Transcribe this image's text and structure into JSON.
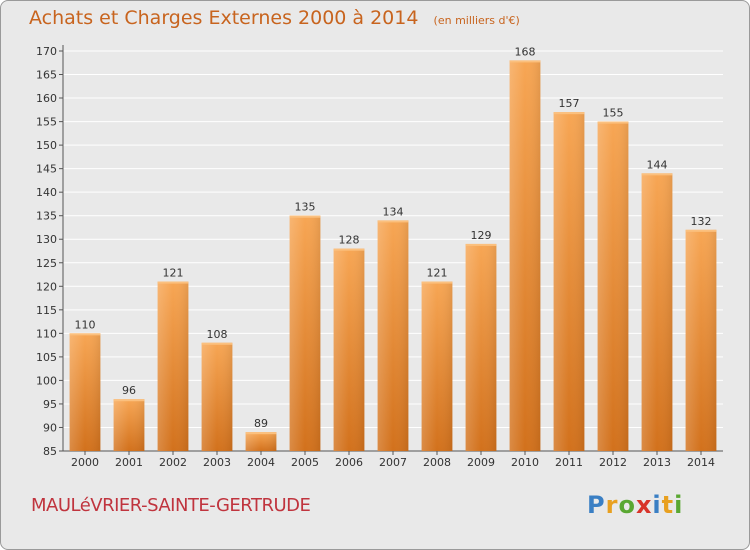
{
  "header": {
    "title": "Achats et Charges Externes 2000 à 2014",
    "unit": "(en milliers d'€)"
  },
  "footer": {
    "commune": "MAULéVRIER-SAINTE-GERTRUDE",
    "brand_letters": [
      "P",
      "r",
      "o",
      "x",
      "i",
      "t",
      "i"
    ],
    "brand_colors": [
      "#3a7fc4",
      "#e8a020",
      "#5aa832",
      "#d8342a",
      "#3a7fc4",
      "#e8a020",
      "#5aa832"
    ]
  },
  "colors": {
    "bar_top": "#f7a654",
    "bar_bottom": "#d2711c",
    "axis_text": "#333333",
    "grid": "#ffffff",
    "plot_bg": "#e9e9e9"
  },
  "chart_data": {
    "type": "bar",
    "title": "Achats et Charges Externes 2000 à 2014",
    "categories": [
      "2000",
      "2001",
      "2002",
      "2003",
      "2004",
      "2005",
      "2006",
      "2007",
      "2008",
      "2009",
      "2010",
      "2011",
      "2012",
      "2013",
      "2014"
    ],
    "values": [
      110,
      96,
      121,
      108,
      89,
      135,
      128,
      134,
      121,
      129,
      168,
      157,
      155,
      144,
      132
    ],
    "ylim": [
      85,
      170
    ],
    "yticks": [
      85,
      90,
      95,
      100,
      105,
      110,
      115,
      120,
      125,
      130,
      135,
      140,
      145,
      150,
      155,
      160,
      165,
      170
    ],
    "grid": true,
    "legend": "none"
  }
}
